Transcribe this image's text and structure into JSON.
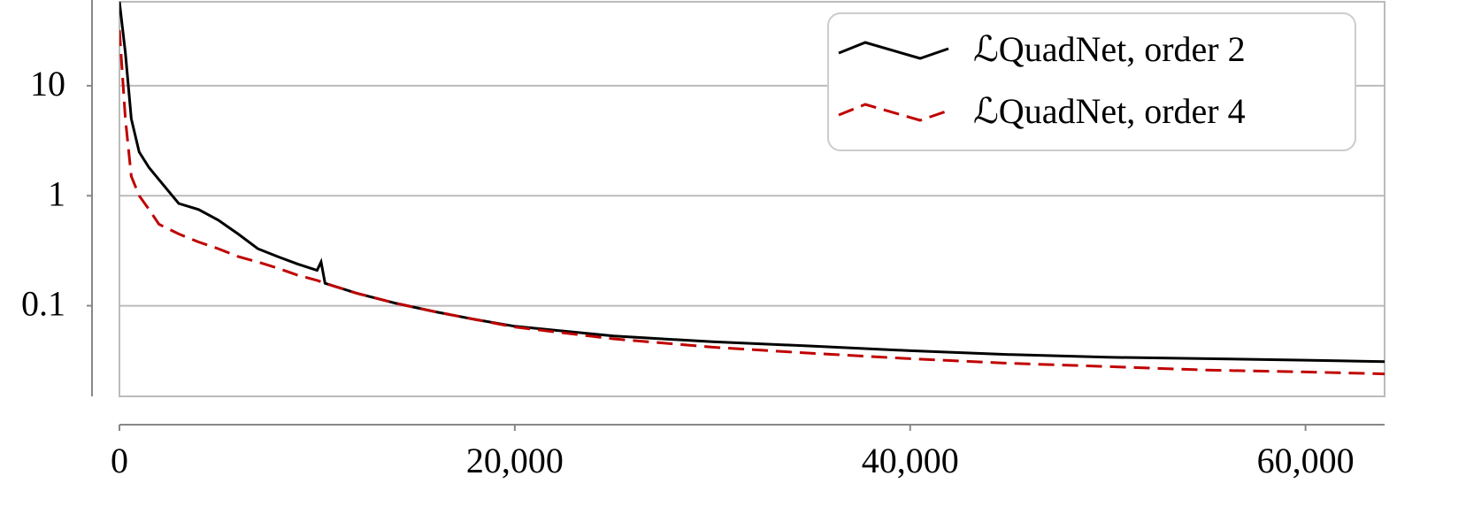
{
  "chart_data": {
    "type": "line",
    "x": [
      0,
      300,
      600,
      1000,
      1500,
      2000,
      3000,
      4000,
      5000,
      6000,
      7000,
      8000,
      9000,
      10000,
      10200,
      10400,
      12000,
      14000,
      16000,
      18000,
      20000,
      25000,
      30000,
      35000,
      40000,
      45000,
      50000,
      55000,
      60000,
      64000
    ],
    "series": [
      {
        "name": "ℒQuadNet, order 2",
        "color": "#000000",
        "dash": false,
        "values": [
          58,
          20,
          5,
          2.5,
          1.8,
          1.4,
          0.85,
          0.75,
          0.6,
          0.45,
          0.33,
          0.28,
          0.24,
          0.21,
          0.25,
          0.16,
          0.13,
          0.105,
          0.088,
          0.075,
          0.065,
          0.053,
          0.047,
          0.043,
          0.039,
          0.036,
          0.034,
          0.033,
          0.032,
          0.031
        ]
      },
      {
        "name": "ℒQuadNet, order 4",
        "color": "#c00000",
        "dash": true,
        "values": [
          32,
          5,
          1.5,
          1.0,
          0.75,
          0.55,
          0.45,
          0.38,
          0.33,
          0.28,
          0.25,
          0.22,
          0.19,
          0.17,
          0.165,
          0.16,
          0.13,
          0.105,
          0.088,
          0.075,
          0.064,
          0.05,
          0.042,
          0.037,
          0.033,
          0.03,
          0.028,
          0.026,
          0.025,
          0.024
        ]
      }
    ],
    "xlim": [
      0,
      64000
    ],
    "xticks": [
      0,
      {
        "value": 20000,
        "label": "20,000"
      },
      {
        "value": 40000,
        "label": "40,000"
      },
      {
        "value": 60000,
        "label": "60,000"
      }
    ],
    "ylim": [
      0.015,
      58
    ],
    "yticks": [
      0.1,
      1,
      10
    ],
    "log_y": true,
    "grid": true,
    "legend": "upper right"
  }
}
